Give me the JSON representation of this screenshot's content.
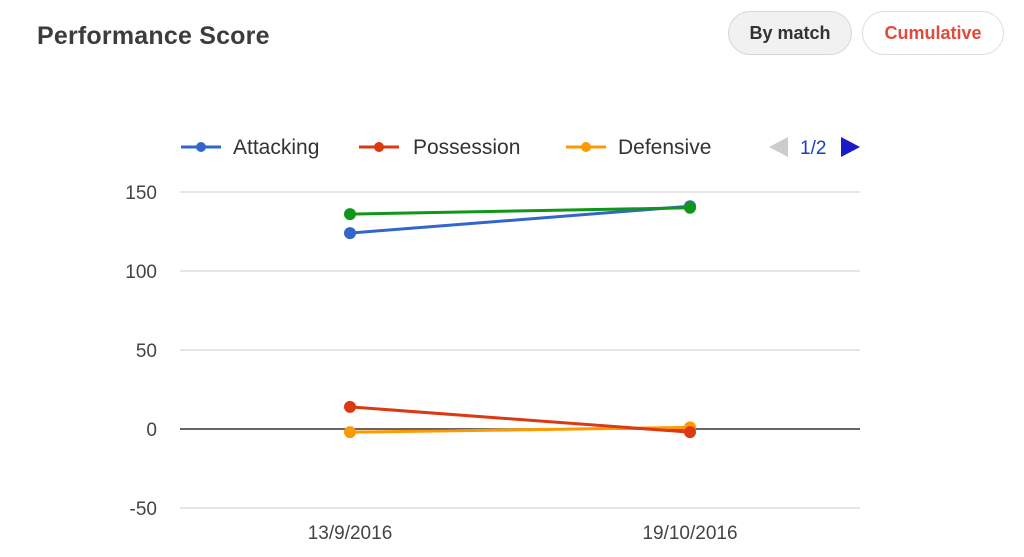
{
  "header": {
    "title": "Performance Score",
    "buttons": [
      {
        "label": "By match"
      },
      {
        "label": "Cumulative"
      }
    ]
  },
  "legend": {
    "pager": "1/2"
  },
  "chart_data": {
    "type": "line",
    "categories": [
      "13/9/2016",
      "19/10/2016"
    ],
    "ylim": [
      -50,
      150
    ],
    "yticks": [
      150,
      100,
      50,
      0,
      -50
    ],
    "grid": true,
    "legend_placement": "top",
    "series": [
      {
        "name": "Attacking",
        "color": "#3366cc",
        "values": [
          124,
          141
        ]
      },
      {
        "name": "Possession",
        "color": "#dc3912",
        "values": [
          14,
          -2
        ]
      },
      {
        "name": "Defensive",
        "color": "#ff9900",
        "values": [
          -2,
          1
        ]
      },
      {
        "name": "",
        "color": "#109618",
        "values": [
          136,
          140
        ]
      }
    ],
    "xlabel": "",
    "ylabel": ""
  }
}
